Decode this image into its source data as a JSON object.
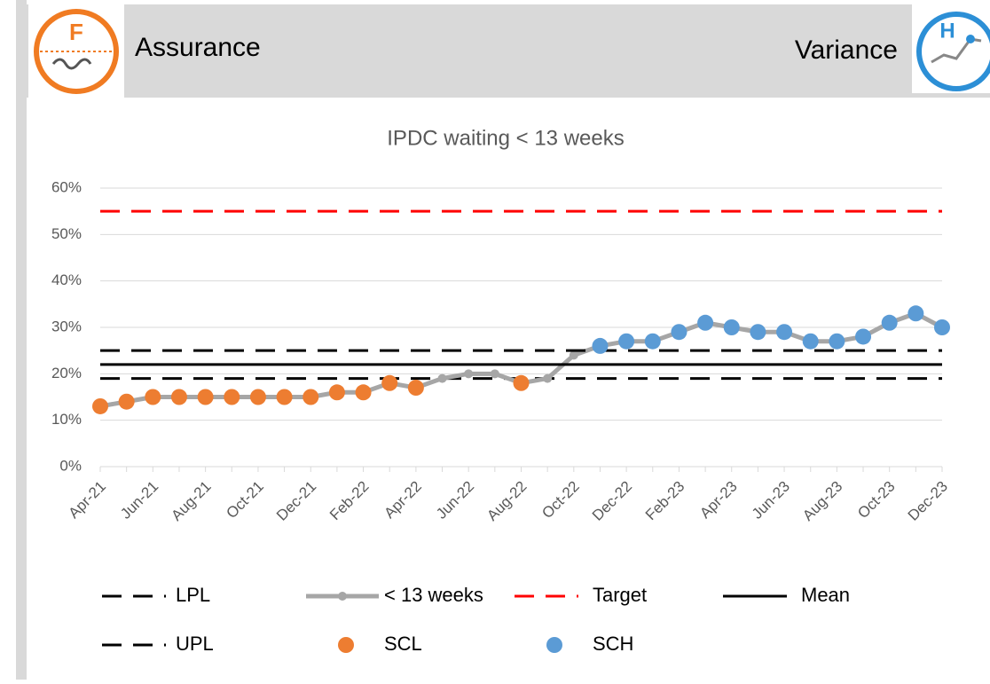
{
  "header": {
    "left_title": "Assurance",
    "right_title": "Variance",
    "left_icon_letter": "F",
    "right_icon_letter": "H"
  },
  "chart_data": {
    "type": "line",
    "title": "IPDC waiting < 13 weeks",
    "categories": [
      "Apr-21",
      null,
      "Jun-21",
      null,
      "Aug-21",
      null,
      "Oct-21",
      null,
      "Dec-21",
      null,
      "Feb-22",
      null,
      "Apr-22",
      null,
      "Jun-22",
      null,
      "Aug-22",
      null,
      "Oct-22",
      null,
      "Dec-22",
      null,
      "Feb-23",
      null,
      "Apr-23",
      null,
      "Jun-23",
      null,
      "Aug-23",
      null,
      "Oct-23",
      null,
      "Dec-23"
    ],
    "ylim": [
      0,
      60
    ],
    "yticks": [
      {
        "value": 0,
        "label": "0%"
      },
      {
        "value": 10,
        "label": "10%"
      },
      {
        "value": 20,
        "label": "20%"
      },
      {
        "value": 30,
        "label": "30%"
      },
      {
        "value": 40,
        "label": "40%"
      },
      {
        "value": 50,
        "label": "50%"
      },
      {
        "value": 60,
        "label": "60%"
      }
    ],
    "grid": true,
    "series": [
      {
        "name": "LPL",
        "color": "#000000",
        "dashed": true,
        "value": 19
      },
      {
        "name": "< 13 weeks",
        "color": "#a6a6a6",
        "values": [
          13,
          14,
          15,
          15,
          15,
          15,
          15,
          15,
          15,
          16,
          16,
          18,
          17,
          19,
          20,
          20,
          18,
          19,
          24,
          26,
          27,
          27,
          29,
          31,
          30,
          29,
          29,
          27,
          27,
          28,
          31,
          33,
          30
        ]
      },
      {
        "name": "Target",
        "color": "#ff0000",
        "dashed": true,
        "value": 55
      },
      {
        "name": "Mean",
        "color": "#000000",
        "dashed": false,
        "value": 22
      },
      {
        "name": "UPL",
        "color": "#000000",
        "dashed": true,
        "value": 25
      },
      {
        "name": "SCL",
        "color": "#ed7d31",
        "markers_only": true,
        "values": [
          13,
          14,
          15,
          15,
          15,
          15,
          15,
          15,
          15,
          16,
          16,
          18,
          17,
          null,
          null,
          null,
          18,
          null,
          null,
          null,
          null,
          null,
          null,
          null,
          null,
          null,
          null,
          null,
          null,
          null,
          null,
          null,
          null
        ]
      },
      {
        "name": "SCH",
        "color": "#5b9bd5",
        "markers_only": true,
        "values": [
          null,
          null,
          null,
          null,
          null,
          null,
          null,
          null,
          null,
          null,
          null,
          null,
          null,
          null,
          null,
          null,
          null,
          null,
          null,
          26,
          27,
          27,
          29,
          31,
          30,
          29,
          29,
          27,
          27,
          28,
          31,
          33,
          30
        ]
      }
    ]
  }
}
